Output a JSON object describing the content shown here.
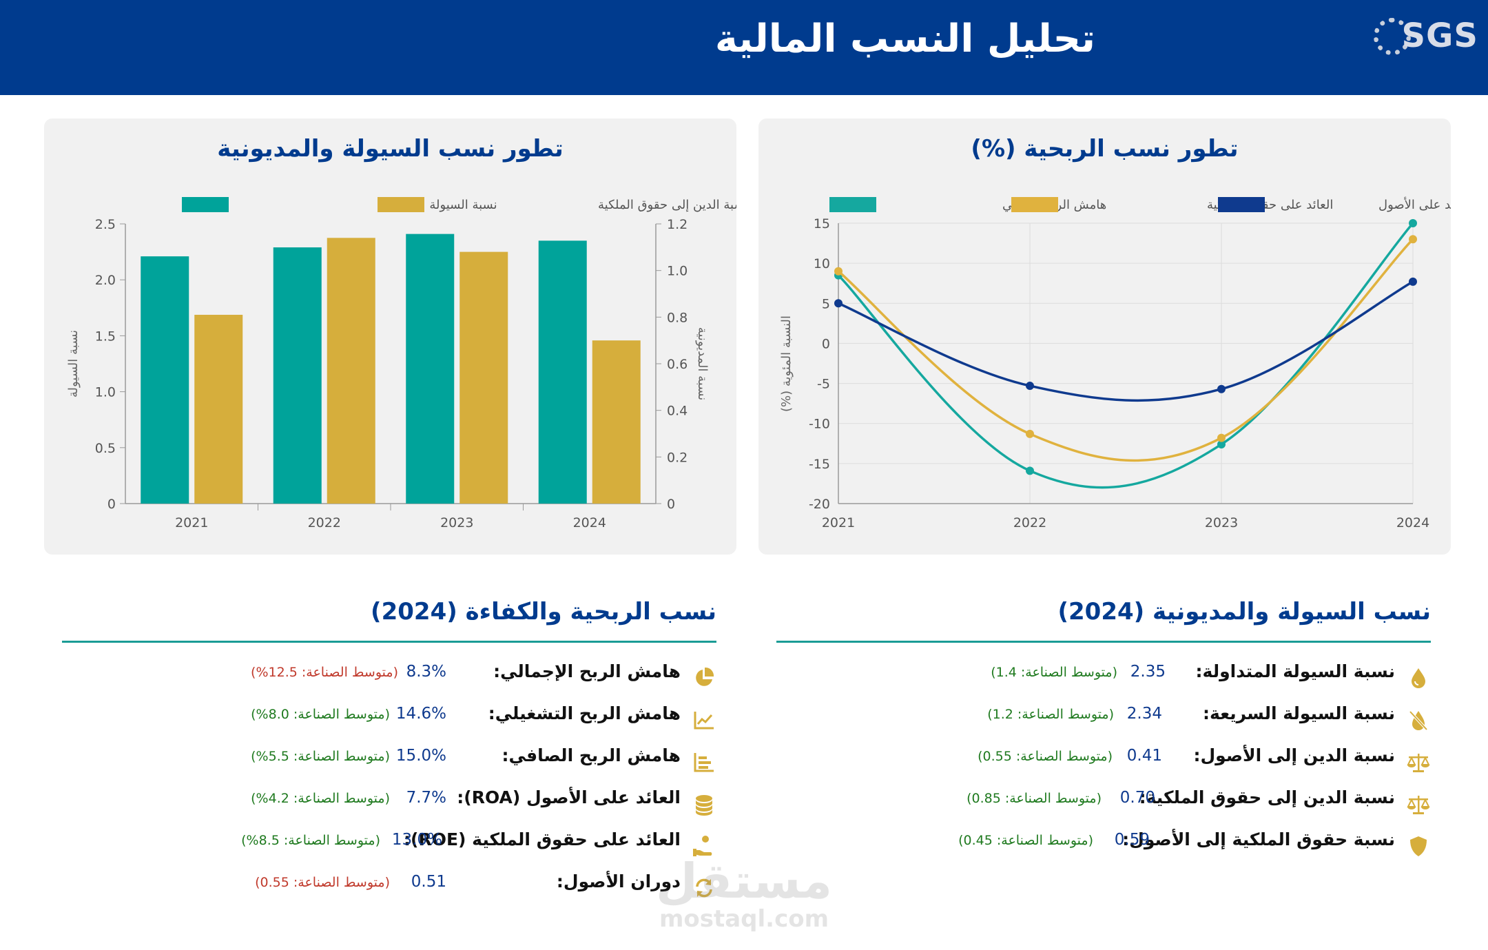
{
  "header": {
    "title": "تحليل النسب المالية",
    "logo_text": "SGS"
  },
  "liquidity_chart": {
    "title": "تطور نسب السيولة والمديونية",
    "legend": [
      "نسبة السيولة المتداولة",
      "نسبة الدين إلى حقوق الملكية"
    ]
  },
  "profitability_chart": {
    "title": "تطور نسب الربحية (%)",
    "legend": [
      "هامش الربح الصافي",
      "العائد على حقوق الملكية",
      "العائد على الأصول"
    ]
  },
  "chart_data": [
    {
      "type": "bar",
      "title": "تطور نسب السيولة والمديونية",
      "categories": [
        "2021",
        "2022",
        "2023",
        "2024"
      ],
      "series": [
        {
          "name": "نسبة السيولة المتداولة",
          "axis": "left",
          "color": "#00a39a",
          "values": [
            2.21,
            2.29,
            2.41,
            2.35
          ]
        },
        {
          "name": "نسبة الدين إلى حقوق الملكية",
          "axis": "right",
          "color": "#d6ae3c",
          "values": [
            0.81,
            1.14,
            1.08,
            0.7
          ]
        }
      ],
      "ylabel": "نسبة السيولة",
      "y2label": "نسبة المديونية",
      "ylim": [
        0,
        2.5
      ],
      "y2lim": [
        0,
        1.2
      ],
      "yticks": [
        "0",
        "0.5",
        "1.0",
        "1.5",
        "2.0",
        "2.5"
      ],
      "y2ticks": [
        "0",
        "0.2",
        "0.4",
        "0.6",
        "0.8",
        "1.0",
        "1.2"
      ],
      "legend_position": "top",
      "grid": false
    },
    {
      "type": "line",
      "title": "تطور نسب الربحية (%)",
      "x": [
        "2021",
        "2022",
        "2023",
        "2024"
      ],
      "series": [
        {
          "name": "هامش الربح الصافي",
          "color": "#15a89f",
          "values": [
            8.5,
            -15.9,
            -12.6,
            15.0
          ]
        },
        {
          "name": "العائد على حقوق الملكية",
          "color": "#e0b23e",
          "values": [
            9.0,
            -11.3,
            -11.8,
            13.0
          ]
        },
        {
          "name": "العائد على الأصول",
          "color": "#0f3a8e",
          "values": [
            5.0,
            -5.3,
            -5.7,
            7.7
          ]
        }
      ],
      "ylabel": "النسبة المئوية (%)",
      "ylim": [
        -20,
        15
      ],
      "yticks": [
        "15",
        "10",
        "5",
        "0",
        "-5",
        "-10",
        "-15",
        "-20"
      ],
      "legend_position": "top",
      "grid": true
    }
  ],
  "liquidity_section": {
    "title": "نسب السيولة والمديونية (2024)",
    "rows": [
      {
        "icon": "drop-icon",
        "label": "نسبة السيولة المتداولة:",
        "value": "2.35",
        "benchmark": "(متوسط الصناعة: 1.4)",
        "status": "good"
      },
      {
        "icon": "no-drop-icon",
        "label": "نسبة السيولة السريعة:",
        "value": "2.34",
        "benchmark": "(متوسط الصناعة: 1.2)",
        "status": "good"
      },
      {
        "icon": "scale-icon",
        "label": "نسبة الدين إلى الأصول:",
        "value": "0.41",
        "benchmark": "(متوسط الصناعة: 0.55)",
        "status": "good"
      },
      {
        "icon": "scale-icon",
        "label": "نسبة الدين إلى حقوق الملكية:",
        "value": "0.70",
        "benchmark": "(متوسط الصناعة: 0.85)",
        "status": "good"
      },
      {
        "icon": "shield-icon",
        "label": "نسبة حقوق الملكية إلى الأصول:",
        "value": "0.59",
        "benchmark": "(متوسط الصناعة: 0.45)",
        "status": "good"
      }
    ]
  },
  "profitability_section": {
    "title": "نسب الربحية والكفاءة (2024)",
    "rows": [
      {
        "icon": "pie-chart-icon",
        "label": "هامش الربح الإجمالي:",
        "value": "8.3%",
        "benchmark": "(متوسط الصناعة: 12.5%)",
        "status": "bad"
      },
      {
        "icon": "line-chart-icon",
        "label": "هامش الربح التشغيلي:",
        "value": "14.6%",
        "benchmark": "(متوسط الصناعة: 8.0%)",
        "status": "good"
      },
      {
        "icon": "bar-list-icon",
        "label": "هامش الربح الصافي:",
        "value": "15.0%",
        "benchmark": "(متوسط الصناعة: 5.5%)",
        "status": "good"
      },
      {
        "icon": "coins-icon",
        "label": "العائد على الأصول (ROA):",
        "value": "7.7%",
        "benchmark": "(متوسط الصناعة: 4.2%)",
        "status": "good"
      },
      {
        "icon": "hand-coin-icon",
        "label": "العائد على حقوق الملكية (ROE):",
        "value": "13.0%",
        "benchmark": "(متوسط الصناعة: 8.5%)",
        "status": "good"
      },
      {
        "icon": "cycle-icon",
        "label": "دوران الأصول:",
        "value": "0.51",
        "benchmark": "(متوسط الصناعة: 0.55)",
        "status": "bad"
      }
    ]
  },
  "watermark": {
    "ar": "مستقل",
    "en": "mostaql.com"
  },
  "colors": {
    "header": "#003b8e",
    "accent": "#1a9c95",
    "gold": "#d6ae3c",
    "good": "#1f7a1f",
    "bad": "#c0392b"
  }
}
